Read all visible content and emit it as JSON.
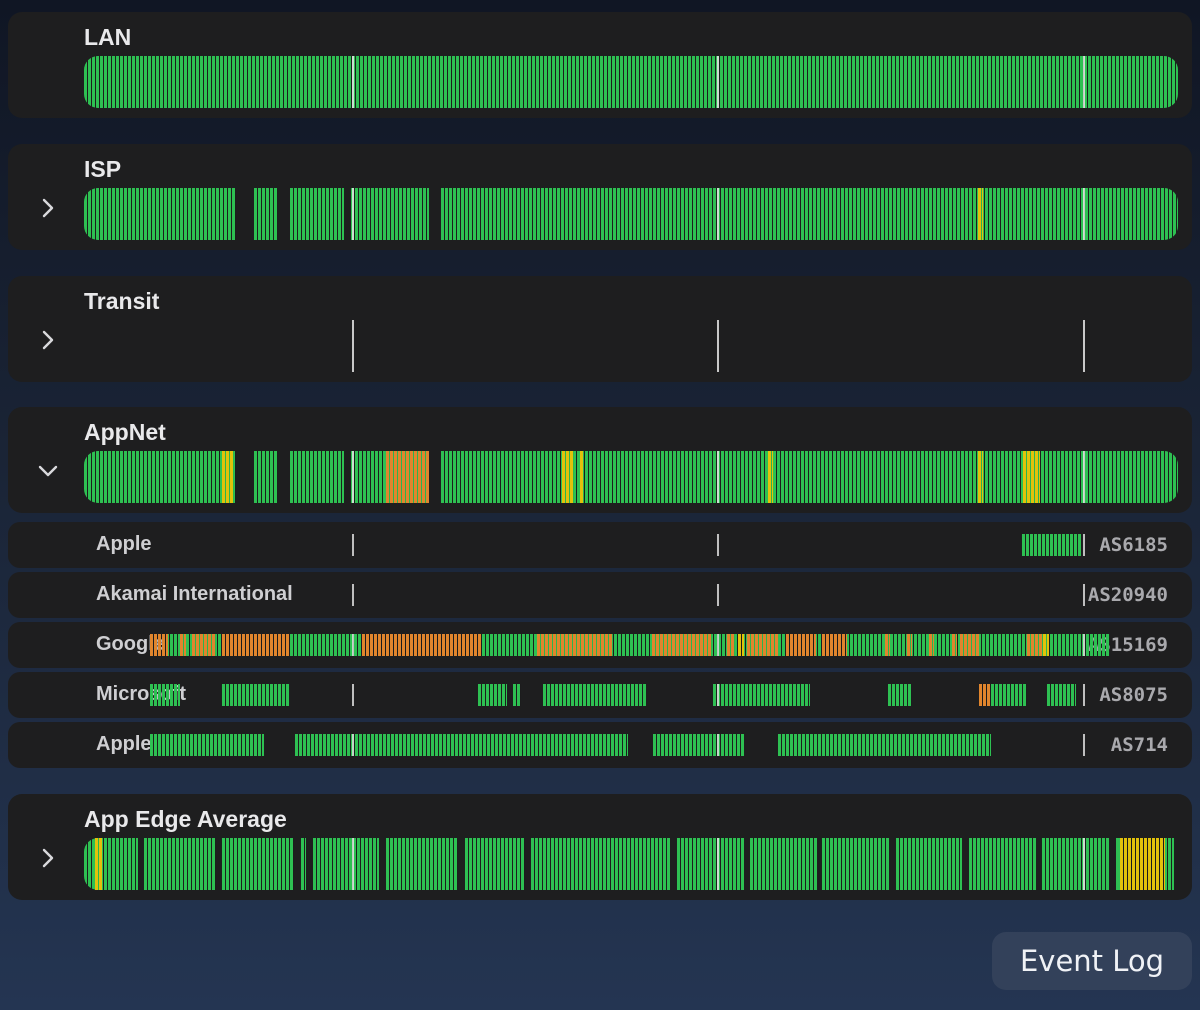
{
  "colors": {
    "good": "#2ec052",
    "warn": "#e2c20b",
    "bad": "#e0852d",
    "tick": "#d8d8d8"
  },
  "time_dividers": [
    0.245,
    0.579,
    0.913
  ],
  "rows": [
    {
      "id": "lan",
      "title": "LAN",
      "chevron": "none",
      "segments": [
        {
          "from": 0.0,
          "to": 1.0,
          "status": "good"
        }
      ]
    },
    {
      "id": "isp",
      "title": "ISP",
      "chevron": "chevron-right-icon",
      "segments": [
        {
          "from": 0.0,
          "to": 0.139,
          "status": "good"
        },
        {
          "from": 0.155,
          "to": 0.177,
          "status": "good"
        },
        {
          "from": 0.188,
          "to": 0.238,
          "status": "good"
        },
        {
          "from": 0.244,
          "to": 0.315,
          "status": "good"
        },
        {
          "from": 0.326,
          "to": 1.0,
          "status": "good"
        },
        {
          "from": 0.817,
          "to": 0.822,
          "status": "warn"
        }
      ]
    },
    {
      "id": "transit",
      "title": "Transit",
      "chevron": "chevron-right-icon",
      "segments": []
    },
    {
      "id": "appnet",
      "title": "AppNet",
      "chevron": "chevron-down-icon",
      "segments": [
        {
          "from": 0.0,
          "to": 0.139,
          "status": "good"
        },
        {
          "from": 0.126,
          "to": 0.137,
          "status": "warn"
        },
        {
          "from": 0.155,
          "to": 0.177,
          "status": "good"
        },
        {
          "from": 0.188,
          "to": 0.238,
          "status": "good"
        },
        {
          "from": 0.244,
          "to": 0.315,
          "status": "good"
        },
        {
          "from": 0.276,
          "to": 0.315,
          "status": "bad"
        },
        {
          "from": 0.326,
          "to": 1.0,
          "status": "good"
        },
        {
          "from": 0.437,
          "to": 0.448,
          "status": "warn"
        },
        {
          "from": 0.453,
          "to": 0.457,
          "status": "warn"
        },
        {
          "from": 0.625,
          "to": 0.63,
          "status": "warn"
        },
        {
          "from": 0.817,
          "to": 0.822,
          "status": "warn"
        },
        {
          "from": 0.858,
          "to": 0.874,
          "status": "warn"
        }
      ]
    },
    {
      "id": "app-edge-average",
      "title": "App Edge Average",
      "chevron": "chevron-right-icon",
      "segments": [
        {
          "from": 0.0,
          "to": 0.049,
          "status": "good"
        },
        {
          "from": 0.01,
          "to": 0.016,
          "status": "warn"
        },
        {
          "from": 0.055,
          "to": 0.121,
          "status": "good"
        },
        {
          "from": 0.126,
          "to": 0.192,
          "status": "good"
        },
        {
          "from": 0.198,
          "to": 0.203,
          "status": "good"
        },
        {
          "from": 0.209,
          "to": 0.27,
          "status": "good"
        },
        {
          "from": 0.276,
          "to": 0.342,
          "status": "good"
        },
        {
          "from": 0.348,
          "to": 0.403,
          "status": "good"
        },
        {
          "from": 0.409,
          "to": 0.536,
          "status": "good"
        },
        {
          "from": 0.542,
          "to": 0.603,
          "status": "good"
        },
        {
          "from": 0.609,
          "to": 0.67,
          "status": "good"
        },
        {
          "from": 0.675,
          "to": 0.736,
          "status": "good"
        },
        {
          "from": 0.742,
          "to": 0.803,
          "status": "good"
        },
        {
          "from": 0.809,
          "to": 0.87,
          "status": "good"
        },
        {
          "from": 0.876,
          "to": 0.937,
          "status": "good"
        },
        {
          "from": 0.943,
          "to": 0.996,
          "status": "good"
        },
        {
          "from": 0.945,
          "to": 0.95,
          "status": "good"
        },
        {
          "from": 0.947,
          "to": 0.988,
          "status": "warn"
        }
      ]
    }
  ],
  "providers": [
    {
      "name": "Apple",
      "asn": "AS6185",
      "segments": [
        {
          "from": 0.857,
          "to": 0.912,
          "status": "good"
        }
      ]
    },
    {
      "name": "Akamai International",
      "asn": "AS20940",
      "segments": []
    },
    {
      "name": "Google",
      "asn": "AS15169",
      "segments": [
        {
          "from": 0.06,
          "to": 0.937,
          "status": "good"
        },
        {
          "from": 0.06,
          "to": 0.077,
          "status": "bad"
        },
        {
          "from": 0.088,
          "to": 0.093,
          "status": "bad"
        },
        {
          "from": 0.099,
          "to": 0.121,
          "status": "bad"
        },
        {
          "from": 0.126,
          "to": 0.187,
          "status": "bad"
        },
        {
          "from": 0.254,
          "to": 0.364,
          "status": "bad"
        },
        {
          "from": 0.414,
          "to": 0.484,
          "status": "bad"
        },
        {
          "from": 0.519,
          "to": 0.574,
          "status": "bad"
        },
        {
          "from": 0.588,
          "to": 0.595,
          "status": "bad"
        },
        {
          "from": 0.598,
          "to": 0.603,
          "status": "warn"
        },
        {
          "from": 0.606,
          "to": 0.634,
          "status": "bad"
        },
        {
          "from": 0.642,
          "to": 0.669,
          "status": "bad"
        },
        {
          "from": 0.675,
          "to": 0.697,
          "status": "bad"
        },
        {
          "from": 0.732,
          "to": 0.737,
          "status": "bad"
        },
        {
          "from": 0.752,
          "to": 0.757,
          "status": "bad"
        },
        {
          "from": 0.772,
          "to": 0.777,
          "status": "bad"
        },
        {
          "from": 0.793,
          "to": 0.798,
          "status": "bad"
        },
        {
          "from": 0.801,
          "to": 0.818,
          "status": "bad"
        },
        {
          "from": 0.862,
          "to": 0.877,
          "status": "bad"
        },
        {
          "from": 0.877,
          "to": 0.882,
          "status": "warn"
        }
      ]
    },
    {
      "name": "Microsoft",
      "asn": "AS8075",
      "segments": [
        {
          "from": 0.06,
          "to": 0.088,
          "status": "good"
        },
        {
          "from": 0.126,
          "to": 0.187,
          "status": "good"
        },
        {
          "from": 0.36,
          "to": 0.387,
          "status": "good"
        },
        {
          "from": 0.392,
          "to": 0.399,
          "status": "good"
        },
        {
          "from": 0.42,
          "to": 0.514,
          "status": "good"
        },
        {
          "from": 0.575,
          "to": 0.664,
          "status": "good"
        },
        {
          "from": 0.735,
          "to": 0.757,
          "status": "good"
        },
        {
          "from": 0.818,
          "to": 0.862,
          "status": "good"
        },
        {
          "from": 0.818,
          "to": 0.829,
          "status": "bad"
        },
        {
          "from": 0.88,
          "to": 0.907,
          "status": "good"
        }
      ]
    },
    {
      "name": "Apple",
      "asn": "AS714",
      "segments": [
        {
          "from": 0.06,
          "to": 0.165,
          "status": "good"
        },
        {
          "from": 0.193,
          "to": 0.497,
          "status": "good"
        },
        {
          "from": 0.52,
          "to": 0.603,
          "status": "good"
        },
        {
          "from": 0.634,
          "to": 0.829,
          "status": "good"
        }
      ]
    }
  ],
  "footer": {
    "event_log_label": "Event Log"
  }
}
